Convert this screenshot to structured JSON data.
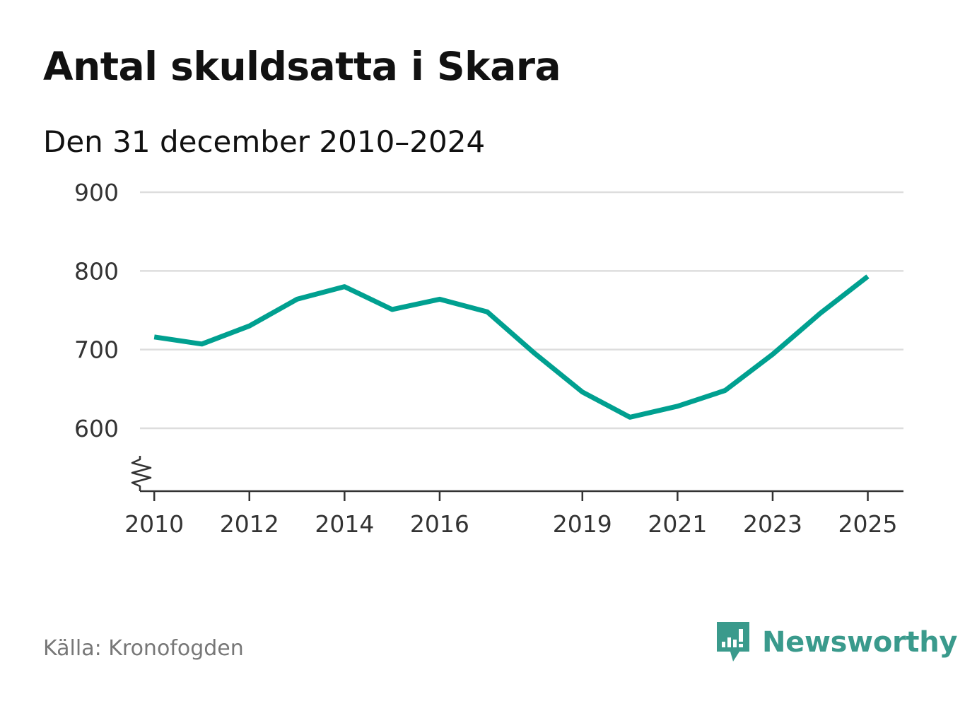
{
  "chart_data": {
    "type": "line",
    "title": "Antal skuldsatta i Skara",
    "subtitle": "Den 31 december 2010–2024",
    "xlabel": "",
    "ylabel": "",
    "x": [
      2010,
      2011,
      2012,
      2013,
      2014,
      2015,
      2016,
      2017,
      2018,
      2019,
      2020,
      2021,
      2022,
      2023,
      2024,
      2025
    ],
    "series": [
      {
        "name": "Antal skuldsatta",
        "color": "#00a090",
        "values": [
          716,
          707,
          730,
          764,
          780,
          751,
          764,
          748,
          695,
          646,
          614,
          628,
          648,
          694,
          746,
          793
        ]
      }
    ],
    "xlim": [
      2009.7,
      2025.75
    ],
    "ylim": [
      520,
      900
    ],
    "y_ticks": [
      600,
      700,
      800,
      900
    ],
    "y_tick_labels": [
      "600",
      "700",
      "800",
      "900"
    ],
    "x_ticks": [
      2010,
      2012,
      2014,
      2016,
      2019,
      2021,
      2023,
      2025
    ],
    "x_tick_labels": [
      "2010",
      "2012",
      "2014",
      "2016",
      "2019",
      "2021",
      "2023",
      "2025"
    ],
    "grid": true,
    "axis_break": true
  },
  "footer": {
    "source": "Källa: Kronofogden",
    "brand": "Newsworthy",
    "brand_icon": "newsworthy-logo-icon",
    "brand_color": "#3a9a8c"
  }
}
